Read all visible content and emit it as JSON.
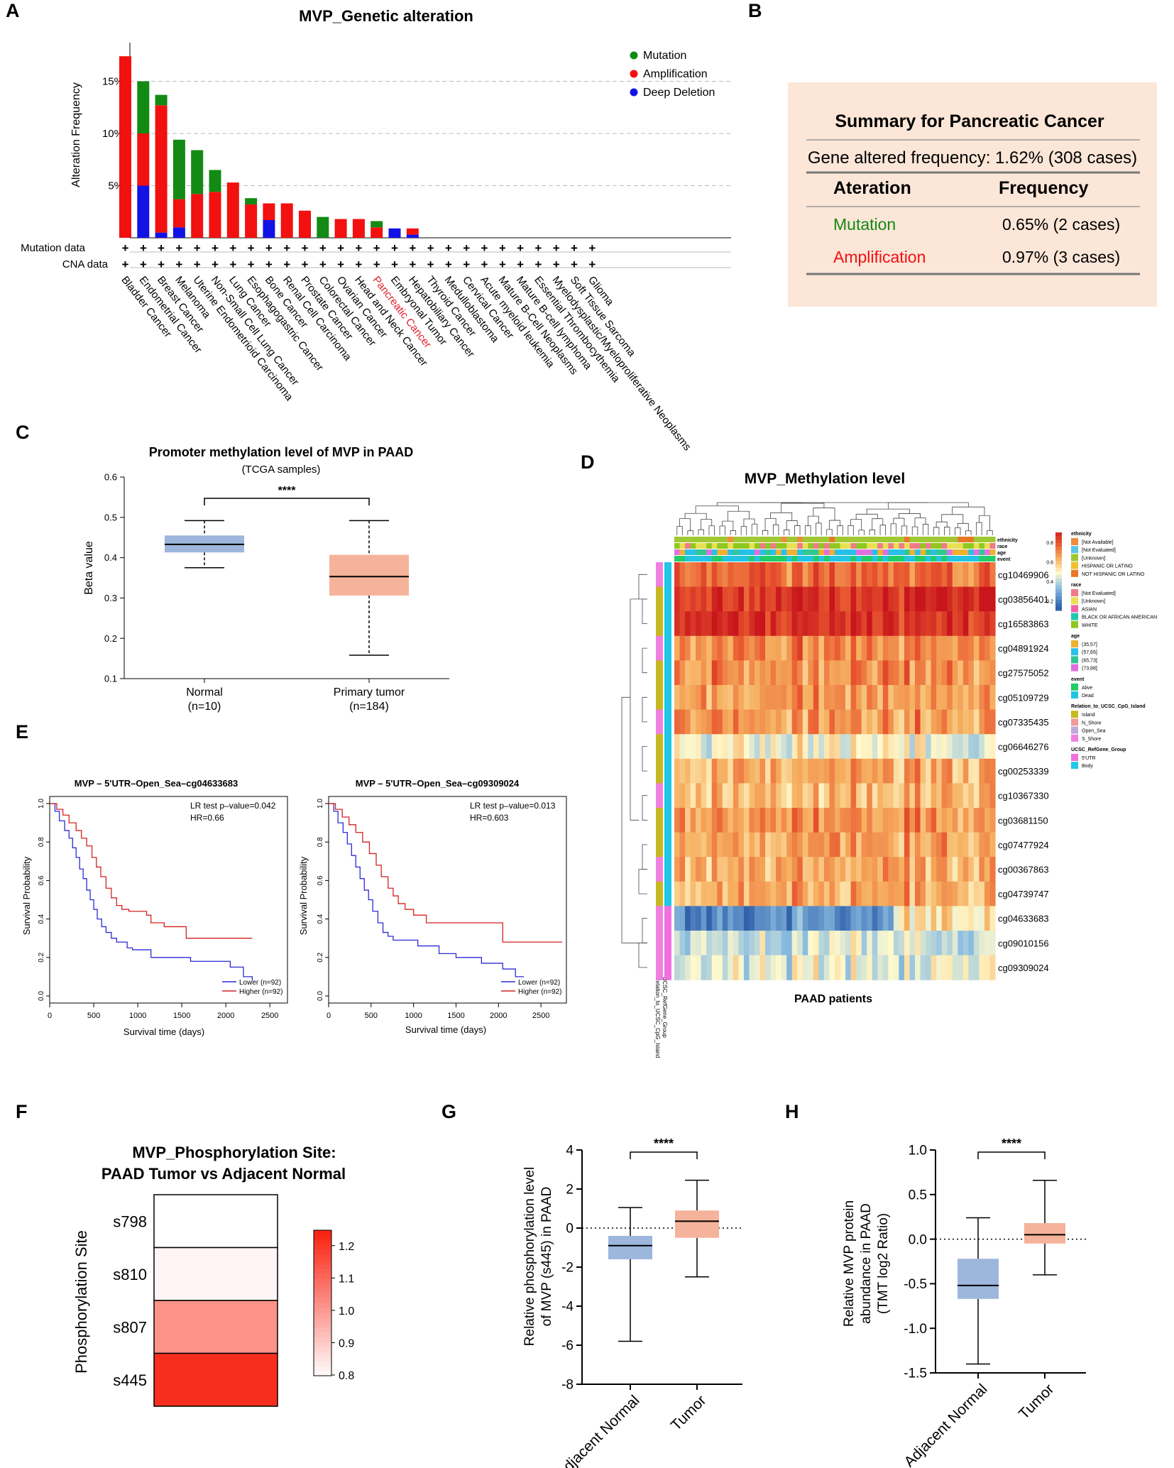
{
  "panel_letters": [
    "A",
    "B",
    "C",
    "D",
    "E",
    "F",
    "G",
    "H"
  ],
  "colors": {
    "mutation": "#138a13",
    "amplification": "#f21010",
    "deletion": "#1212e6",
    "highlight": "#e0202a",
    "boxBlue": "#9db6dc",
    "boxSalmon": "#f5b39b",
    "summaryBg": "#fbe6d8",
    "kmLower": "#2b2bd6",
    "kmHigher": "#d42020"
  },
  "chart_data": [
    {
      "id": "A",
      "type": "bar",
      "stacked": true,
      "title": "MVP_Genetic alteration",
      "ylabel": "Alteration Frequency",
      "ylim": [
        0,
        18
      ],
      "yticks": [
        "5%",
        "10%",
        "15%"
      ],
      "ytick_values": [
        5,
        10,
        15
      ],
      "highlight_category": "Pancreatic Cancer",
      "legend": [
        {
          "key": "mutation",
          "label": "Mutation"
        },
        {
          "key": "amplification",
          "label": "Amplification"
        },
        {
          "key": "deletion",
          "label": "Deep Deletion"
        }
      ],
      "row_labels": [
        "Mutation data",
        "CNA data"
      ],
      "row_marker": "+",
      "categories": [
        "Bladder Cancer",
        "Endometrial Cancer",
        "Breast Cancer",
        "Melanoma",
        "Uterine Endometrioid Carcinoma",
        "Non-Small Cell Lung Cancer",
        "Lung Cancer",
        "Esophagogastric Cancer",
        "Bone Cancer",
        "Renal Cell Carcinoma",
        "Prostate Cancer",
        "Colorectal Cancer",
        "Ovarian Cancer",
        "Head and Neck Cancer",
        "Pancreatic Cancer",
        "Embryonal Tumor",
        "Hepatobiliary Cancer",
        "Thyroid Cancer",
        "Medulloblastoma",
        "Cervical Cancer",
        "Acute myeloid leukemia",
        "Mature B-Cell Neoplasms",
        "Mature B-cell lymphoma",
        "Essential Thrombocythemia",
        "Myelodysplastic/Myeloproliferative Neoplasms",
        "Soft Tissue Sarcoma",
        "Glioma"
      ],
      "series": [
        {
          "name": "Deep Deletion",
          "key": "deletion",
          "values": [
            0,
            5.0,
            0.5,
            1.0,
            0,
            0,
            0,
            0,
            1.7,
            0,
            0,
            0,
            0,
            0,
            0,
            0.9,
            0.3,
            0,
            0,
            0,
            0,
            0,
            0,
            0,
            0,
            0,
            0
          ]
        },
        {
          "name": "Amplification",
          "key": "amplification",
          "values": [
            17.4,
            5.0,
            12.2,
            2.7,
            4.2,
            4.4,
            5.3,
            3.2,
            1.6,
            3.3,
            2.6,
            0,
            1.8,
            1.8,
            1.0,
            0,
            0.6,
            0,
            0,
            0,
            0,
            0,
            0,
            0,
            0,
            0,
            0
          ]
        },
        {
          "name": "Mutation",
          "key": "mutation",
          "values": [
            0,
            5.0,
            1.0,
            5.7,
            4.2,
            2.1,
            0,
            0.6,
            0,
            0,
            0,
            2.0,
            0,
            0,
            0.6,
            0,
            0,
            0,
            0,
            0,
            0,
            0,
            0,
            0,
            0,
            0,
            0
          ]
        }
      ]
    },
    {
      "id": "C",
      "type": "box",
      "title": "Promoter methylation level of MVP in PAAD",
      "subtitle": "(TCGA samples)",
      "ylabel": "Beta value",
      "ylim": [
        0.1,
        0.6
      ],
      "yticks": [
        0.1,
        0.2,
        0.3,
        0.4,
        0.5,
        0.6
      ],
      "significance": "****",
      "groups": [
        {
          "name": "Normal",
          "n_label": "(n=10)",
          "color_key": "boxBlue",
          "min": 0.375,
          "q1": 0.413,
          "median": 0.433,
          "q3": 0.455,
          "max": 0.492
        },
        {
          "name": "Primary tumor",
          "n_label": "(n=184)",
          "color_key": "boxSalmon",
          "min": 0.158,
          "q1": 0.306,
          "median": 0.353,
          "q3": 0.407,
          "max": 0.492
        }
      ]
    },
    {
      "id": "D",
      "type": "heatmap",
      "title": "MVP_Methylation level",
      "xlabel": "PAAD patients",
      "annotation_rows": [
        "ethnicity",
        "race",
        "age",
        "event"
      ],
      "side_annotations": [
        "UCSC_RefGene_Group",
        "Relation_to_UCSC_CpG_Island"
      ],
      "colorbar_ticks": [
        0.2,
        0.4,
        0.6,
        0.8
      ],
      "rows": [
        "cg10469906",
        "cg03856401",
        "cg16583863",
        "cg04891924",
        "cg27575052",
        "cg05109729",
        "cg07335435",
        "cg06646276",
        "cg00253339",
        "cg10367330",
        "cg03681150",
        "cg07477924",
        "cg00367863",
        "cg04739747",
        "cg04633683",
        "cg09010156",
        "cg09309024"
      ],
      "row_mean_beta": [
        0.78,
        0.9,
        0.9,
        0.72,
        0.72,
        0.7,
        0.7,
        0.5,
        0.66,
        0.64,
        0.7,
        0.68,
        0.66,
        0.66,
        0.25,
        0.45,
        0.47
      ],
      "legend_groups": [
        {
          "title": "ethnicity",
          "items": [
            [
              "[Not Available]",
              "#f08c3c"
            ],
            [
              "[Not Evaluated]",
              "#58c4e8"
            ],
            [
              "[Unknown]",
              "#a0c832"
            ],
            [
              "HISPANIC OR LATINO",
              "#f0c030"
            ],
            [
              "NOT HISPANIC OR LATINO",
              "#e87828"
            ]
          ]
        },
        {
          "title": "race",
          "items": [
            [
              "[Not Evaluated]",
              "#f07a8a"
            ],
            [
              "[Unknown]",
              "#e8e050"
            ],
            [
              "ASIAN",
              "#ee66a8"
            ],
            [
              "BLACK OR AFRICAN AMERICAN",
              "#20c8b0"
            ],
            [
              "WHITE",
              "#90c820"
            ]
          ]
        },
        {
          "title": "age",
          "items": [
            [
              "(35,57]",
              "#f0b030"
            ],
            [
              "(57,65]",
              "#28c0e8"
            ],
            [
              "(65,73]",
              "#30c890"
            ],
            [
              "(73,88]",
              "#e070e0"
            ]
          ]
        },
        {
          "title": "event",
          "items": [
            [
              "Alive",
              "#22cc66"
            ],
            [
              "Dead",
              "#22c4e4"
            ]
          ]
        },
        {
          "title": "Relation_to_UCSC_CpG_Island",
          "items": [
            [
              "Island",
              "#c8b820"
            ],
            [
              "N_Shore",
              "#f09a9a"
            ],
            [
              "Open_Sea",
              "#c0a8e0"
            ],
            [
              "S_Shore",
              "#f080e0"
            ]
          ]
        },
        {
          "title": "UCSC_RefGene_Group",
          "items": [
            [
              "5'UTR",
              "#f070e0"
            ],
            [
              "Body",
              "#20c8e8"
            ]
          ]
        }
      ]
    },
    {
      "id": "E1",
      "type": "line",
      "subtype": "kaplan-meier",
      "title": "MVP – 5'UTR–Open_Sea–cg04633683",
      "xlabel": "Survival time (days)",
      "ylabel": "Survival Probability",
      "xlim": [
        0,
        2700
      ],
      "ylim": [
        0,
        1.0
      ],
      "xticks": [
        0,
        500,
        1000,
        1500,
        2000,
        2500
      ],
      "yticks": [
        "0.0",
        "0.2",
        "0.4",
        "0.6",
        "0.8",
        "1.0"
      ],
      "ytick_values": [
        0,
        0.2,
        0.4,
        0.6,
        0.8,
        1.0
      ],
      "stats": [
        "LR test p–value=0.042",
        "HR=0.66"
      ],
      "series": [
        {
          "name": "Lower (n=92)",
          "color_key": "kmLower",
          "x": [
            0,
            60,
            110,
            170,
            220,
            260,
            300,
            340,
            380,
            420,
            460,
            500,
            540,
            590,
            640,
            700,
            760,
            820,
            880,
            940,
            1050,
            1150,
            1400,
            1500,
            1600,
            2050,
            2150,
            2200,
            2300
          ],
          "y": [
            1.0,
            0.96,
            0.91,
            0.86,
            0.82,
            0.77,
            0.72,
            0.66,
            0.61,
            0.55,
            0.5,
            0.45,
            0.4,
            0.36,
            0.33,
            0.3,
            0.28,
            0.28,
            0.25,
            0.24,
            0.24,
            0.2,
            0.2,
            0.2,
            0.18,
            0.15,
            0.15,
            0.1,
            0.08
          ]
        },
        {
          "name": "Higher (n=92)",
          "color_key": "kmHigher",
          "x": [
            0,
            80,
            150,
            220,
            300,
            360,
            420,
            480,
            530,
            580,
            640,
            700,
            760,
            820,
            900,
            1100,
            1150,
            1300,
            1500,
            1550,
            2000,
            2300
          ],
          "y": [
            1.0,
            0.97,
            0.94,
            0.9,
            0.86,
            0.82,
            0.78,
            0.72,
            0.67,
            0.62,
            0.56,
            0.51,
            0.47,
            0.45,
            0.44,
            0.42,
            0.38,
            0.36,
            0.36,
            0.3,
            0.3,
            0.3
          ]
        }
      ]
    },
    {
      "id": "E2",
      "type": "line",
      "subtype": "kaplan-meier",
      "title": "MVP – 5'UTR–Open_Sea–cg09309024",
      "xlabel": "Survival time (days)",
      "ylabel": "Survival Probability",
      "xlim": [
        0,
        2800
      ],
      "ylim": [
        0,
        1.0
      ],
      "xticks": [
        0,
        500,
        1000,
        1500,
        2000,
        2500
      ],
      "yticks": [
        "0.0",
        "0.2",
        "0.4",
        "0.6",
        "0.8",
        "1.0"
      ],
      "ytick_values": [
        0,
        0.2,
        0.4,
        0.6,
        0.8,
        1.0
      ],
      "stats": [
        "LR test p–value=0.013",
        "HR=0.603"
      ],
      "series": [
        {
          "name": "Lower (n=92)",
          "color_key": "kmLower",
          "x": [
            0,
            60,
            110,
            170,
            220,
            270,
            320,
            370,
            420,
            470,
            520,
            580,
            640,
            700,
            760,
            900,
            1050,
            1150,
            1300,
            1500,
            1800,
            2050,
            2200,
            2300
          ],
          "y": [
            1.0,
            0.96,
            0.9,
            0.85,
            0.79,
            0.73,
            0.67,
            0.61,
            0.55,
            0.5,
            0.44,
            0.38,
            0.33,
            0.31,
            0.29,
            0.29,
            0.26,
            0.26,
            0.22,
            0.2,
            0.17,
            0.14,
            0.1,
            0.1
          ]
        },
        {
          "name": "Higher (n=92)",
          "color_key": "kmHigher",
          "x": [
            0,
            80,
            160,
            240,
            320,
            400,
            480,
            560,
            620,
            700,
            760,
            820,
            900,
            1000,
            1150,
            1600,
            2050,
            2200,
            2750
          ],
          "y": [
            1.0,
            0.97,
            0.93,
            0.89,
            0.85,
            0.8,
            0.74,
            0.68,
            0.62,
            0.56,
            0.52,
            0.48,
            0.45,
            0.42,
            0.38,
            0.38,
            0.28,
            0.28,
            0.28
          ]
        }
      ]
    },
    {
      "id": "F",
      "type": "heatmap",
      "title_lines": [
        "MVP_Phosphorylation Site:",
        "PAAD Tumor vs Adjacent Normal"
      ],
      "ylabel": "Phosphorylation Site",
      "rows": [
        "s798",
        "s810",
        "s807",
        "s445"
      ],
      "values": [
        0.8,
        0.82,
        1.02,
        1.23
      ],
      "colorbar_range": [
        0.8,
        1.25
      ],
      "colorbar_ticks": [
        "0.8",
        "0.9",
        "1.0",
        "1.1",
        "1.2"
      ],
      "colorbar_tick_values": [
        0.8,
        0.9,
        1.0,
        1.1,
        1.2
      ]
    },
    {
      "id": "G",
      "type": "box",
      "ylabel_lines": [
        "Relative phosphorylation level",
        "of MVP (s445) in PAAD"
      ],
      "ylim": [
        -8,
        4
      ],
      "yticks": [
        -8,
        -6,
        -4,
        -2,
        0,
        2,
        4
      ],
      "significance": "****",
      "groups": [
        {
          "name": "Adjacent Normal",
          "color_key": "boxBlue",
          "min": -5.8,
          "q1": -1.6,
          "median": -0.9,
          "q3": -0.4,
          "max": 1.05
        },
        {
          "name": "Tumor",
          "color_key": "boxSalmon",
          "min": -2.5,
          "q1": -0.5,
          "median": 0.35,
          "q3": 0.9,
          "max": 2.45
        }
      ]
    },
    {
      "id": "H",
      "type": "box",
      "ylabel_lines": [
        "Relative MVP protein",
        "abundance in PAAD",
        "(TMT log2 Ratio)"
      ],
      "ylim": [
        -1.5,
        1.0
      ],
      "yticks": [
        "1.0",
        "0.5",
        "0.0",
        "-0.5",
        "-1.0",
        "-1.5"
      ],
      "ytick_values": [
        1.0,
        0.5,
        0.0,
        -0.5,
        -1.0,
        -1.5
      ],
      "significance": "****",
      "groups": [
        {
          "name": "Adjacent Normal",
          "color_key": "boxBlue",
          "min": -1.4,
          "q1": -0.67,
          "median": -0.52,
          "q3": -0.22,
          "max": 0.24
        },
        {
          "name": "Tumor",
          "color_key": "boxSalmon",
          "min": -0.4,
          "q1": -0.05,
          "median": 0.05,
          "q3": 0.18,
          "max": 0.66
        }
      ]
    }
  ],
  "summary": {
    "title": "Summary for Pancreatic Cancer",
    "freq_line": "Gene altered frequency: 1.62% (308 cases)",
    "headers": [
      "Ateration",
      "Frequency"
    ],
    "rows": [
      {
        "name": "Mutation",
        "value": "0.65% (2 cases)",
        "color_key": "mutation"
      },
      {
        "name": "Amplification",
        "value": "0.97% (3 cases)",
        "color_key": "amplification"
      }
    ]
  }
}
